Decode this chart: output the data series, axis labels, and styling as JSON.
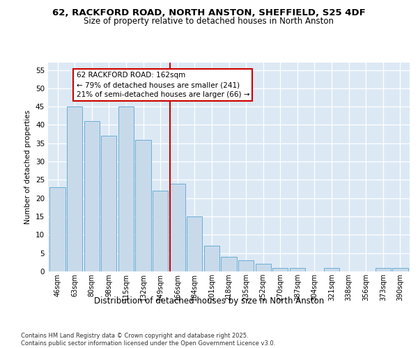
{
  "title1": "62, RACKFORD ROAD, NORTH ANSTON, SHEFFIELD, S25 4DF",
  "title2": "Size of property relative to detached houses in North Anston",
  "xlabel": "Distribution of detached houses by size in North Anston",
  "ylabel": "Number of detached properties",
  "bin_labels": [
    "46sqm",
    "63sqm",
    "80sqm",
    "98sqm",
    "115sqm",
    "132sqm",
    "149sqm",
    "166sqm",
    "184sqm",
    "201sqm",
    "218sqm",
    "235sqm",
    "252sqm",
    "270sqm",
    "287sqm",
    "304sqm",
    "321sqm",
    "338sqm",
    "356sqm",
    "373sqm",
    "390sqm"
  ],
  "bar_values": [
    23,
    45,
    41,
    37,
    45,
    36,
    22,
    24,
    15,
    7,
    4,
    3,
    2,
    1,
    1,
    0,
    1,
    0,
    0,
    1,
    1
  ],
  "bar_color": "#c8daea",
  "bar_edgecolor": "#6aadd5",
  "subject_bin_index": 7,
  "subject_label": "62 RACKFORD ROAD: 162sqm",
  "annotation_line1": "← 79% of detached houses are smaller (241)",
  "annotation_line2": "21% of semi-detached houses are larger (66) →",
  "vline_color": "#cc0000",
  "ylim": [
    0,
    57
  ],
  "yticks": [
    0,
    5,
    10,
    15,
    20,
    25,
    30,
    35,
    40,
    45,
    50,
    55
  ],
  "footnote1": "Contains HM Land Registry data © Crown copyright and database right 2025.",
  "footnote2": "Contains public sector information licensed under the Open Government Licence v3.0.",
  "bg_color": "#ffffff",
  "plot_bg_color": "#dce9f5"
}
